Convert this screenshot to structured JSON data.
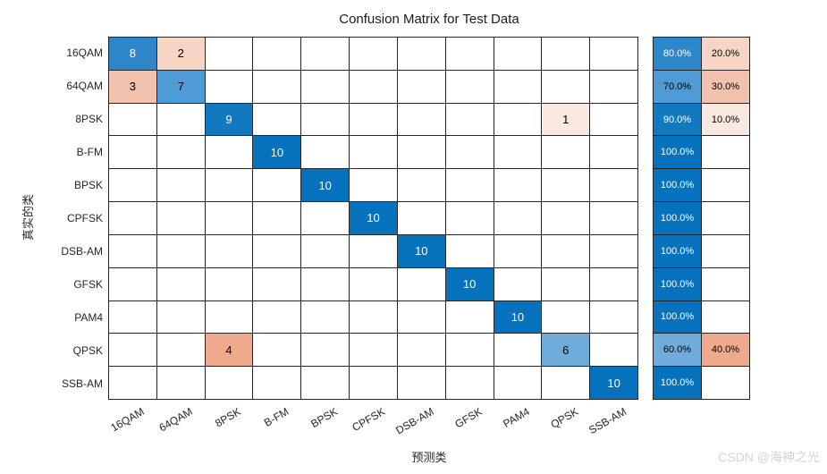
{
  "title": "Confusion Matrix for Test Data",
  "axis": {
    "xlabel": "预测类",
    "ylabel": "真实的类"
  },
  "watermark": "CSDN @海神之光",
  "chart_data": {
    "type": "heatmap",
    "subtype": "confusion-matrix",
    "classes": [
      "16QAM",
      "64QAM",
      "8PSK",
      "B-FM",
      "BPSK",
      "CPFSK",
      "DSB-AM",
      "GFSK",
      "PAM4",
      "QPSK",
      "SSB-AM"
    ],
    "matrix": [
      [
        8,
        2,
        0,
        0,
        0,
        0,
        0,
        0,
        0,
        0,
        0
      ],
      [
        3,
        7,
        0,
        0,
        0,
        0,
        0,
        0,
        0,
        0,
        0
      ],
      [
        0,
        0,
        9,
        0,
        0,
        0,
        0,
        0,
        0,
        1,
        0
      ],
      [
        0,
        0,
        0,
        10,
        0,
        0,
        0,
        0,
        0,
        0,
        0
      ],
      [
        0,
        0,
        0,
        0,
        10,
        0,
        0,
        0,
        0,
        0,
        0
      ],
      [
        0,
        0,
        0,
        0,
        0,
        10,
        0,
        0,
        0,
        0,
        0
      ],
      [
        0,
        0,
        0,
        0,
        0,
        0,
        10,
        0,
        0,
        0,
        0
      ],
      [
        0,
        0,
        0,
        0,
        0,
        0,
        0,
        10,
        0,
        0,
        0
      ],
      [
        0,
        0,
        0,
        0,
        0,
        0,
        0,
        0,
        10,
        0,
        0
      ],
      [
        0,
        0,
        4,
        0,
        0,
        0,
        0,
        0,
        0,
        6,
        0
      ],
      [
        0,
        0,
        0,
        0,
        0,
        0,
        0,
        0,
        0,
        0,
        10
      ]
    ],
    "row_summary": [
      [
        "80.0%",
        "20.0%"
      ],
      [
        "70.0%",
        "30.0%"
      ],
      [
        "90.0%",
        "10.0%"
      ],
      [
        "100.0%",
        ""
      ],
      [
        "100.0%",
        ""
      ],
      [
        "100.0%",
        ""
      ],
      [
        "100.0%",
        ""
      ],
      [
        "100.0%",
        ""
      ],
      [
        "100.0%",
        ""
      ],
      [
        "60.0%",
        "40.0%"
      ],
      [
        "100.0%",
        ""
      ]
    ],
    "legend_position": "none",
    "grid": true
  },
  "colors": {
    "diagonal_base": "#0072BD",
    "off_diagonal_base": "#D95319",
    "diagonal_shades": {
      "6": "#6FACDB",
      "7": "#4F9BD5",
      "8": "#2E87C9",
      "9": "#1179C1",
      "10": "#0672BE"
    },
    "off_diagonal_shades": {
      "1": "#FAE9E0",
      "2": "#F6D5C5",
      "3": "#F2C2AE",
      "4": "#EFA98D"
    },
    "grid_line": "#262626",
    "label_text": "#262626",
    "cell_text_dark": "#000000",
    "cell_text_light": "#FFFFFF",
    "watermark": "#D2D3DC",
    "background": "#FFFFFF"
  }
}
